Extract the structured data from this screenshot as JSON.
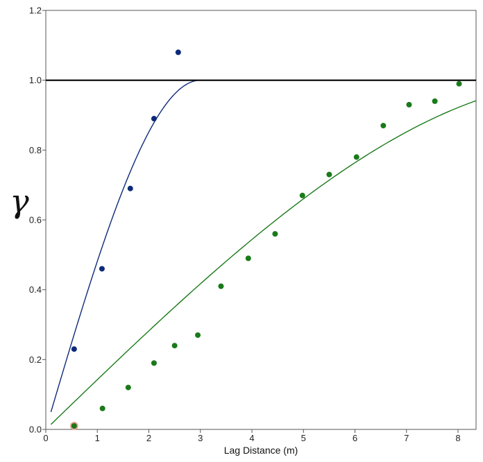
{
  "chart_data": {
    "type": "scatter",
    "title": "",
    "xlabel": "Lag Distance (m)",
    "ylabel": "γ",
    "xlim": [
      0,
      8.35
    ],
    "ylim": [
      0,
      1.2
    ],
    "xticks": [
      0,
      1,
      2,
      3,
      4,
      5,
      6,
      7,
      8
    ],
    "yticks": [
      0.0,
      0.2,
      0.4,
      0.6,
      0.8,
      1.0,
      1.2
    ],
    "ytick_labels": [
      "0.0",
      "0.2",
      "0.4",
      "0.6",
      "0.8",
      "1.0",
      "1.2"
    ],
    "xtick_labels": [
      "0",
      "1",
      "2",
      "3",
      "4",
      "5",
      "6",
      "7",
      "8"
    ],
    "grid": false,
    "sill": 1.0,
    "series": [
      {
        "kind": "points",
        "color": "#0d2a7a",
        "x": [
          0.55,
          1.09,
          1.64,
          2.1,
          2.57
        ],
        "y": [
          0.23,
          0.46,
          0.69,
          0.89,
          1.08
        ]
      },
      {
        "kind": "points",
        "color": "#1a7a1a",
        "x": [
          0.55,
          1.1,
          1.6,
          2.1,
          2.5,
          2.95,
          3.4,
          3.93,
          4.45,
          4.98,
          5.5,
          6.03,
          6.55,
          7.05,
          7.55,
          8.02
        ],
        "y": [
          0.01,
          0.06,
          0.12,
          0.19,
          0.24,
          0.27,
          0.41,
          0.49,
          0.56,
          0.67,
          0.73,
          0.78,
          0.87,
          0.93,
          0.94,
          0.99
        ]
      },
      {
        "kind": "model",
        "model": "spherical",
        "color": "#0d2a7a",
        "nugget": 0.0,
        "sill": 1.0,
        "range": 3.0,
        "x_start": 0.1,
        "x_end": 3.0
      },
      {
        "kind": "model",
        "model": "spherical",
        "color": "#1a7a1a",
        "nugget": 0.0,
        "sill": 1.0,
        "range": 10.5,
        "x_start": 0.1,
        "x_end": 8.35
      }
    ],
    "highlighted_point": {
      "x": 0.55,
      "y": 0.01,
      "ring_color": "#e8a08a"
    }
  }
}
